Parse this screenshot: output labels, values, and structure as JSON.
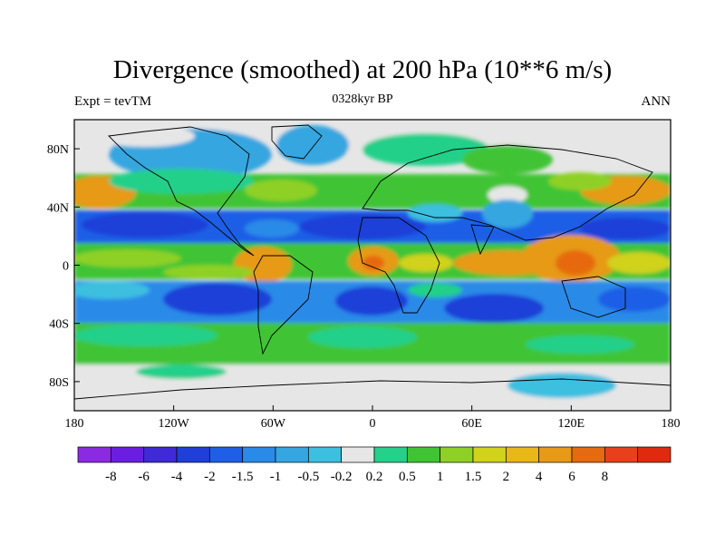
{
  "title": "Divergence (smoothed) at 200 hPa (10**6 m/s)",
  "left_label": "Expt = tevTM",
  "center_label": "0328kyr BP",
  "right_label": "ANN",
  "map": {
    "lat_labels": [
      "80N",
      "40N",
      "0",
      "40S",
      "80S"
    ],
    "lat_values": [
      80,
      40,
      0,
      -40,
      -80
    ],
    "lon_labels": [
      "180",
      "120W",
      "60W",
      "0",
      "60E",
      "120E",
      "180"
    ],
    "lon_values": [
      -180,
      -120,
      -60,
      0,
      60,
      120,
      180
    ]
  },
  "colorbar": {
    "colors": [
      "#8a2be2",
      "#6a1fe0",
      "#3f2ad6",
      "#1f3fd8",
      "#1e5fe6",
      "#2a8ae8",
      "#35a6e0",
      "#3dbfe0",
      "#e6e6e6",
      "#24d08a",
      "#41c434",
      "#8ed026",
      "#d0d21c",
      "#e8b818",
      "#e69a18",
      "#e66a10",
      "#e8401c",
      "#e02a10"
    ],
    "labels": [
      "-8",
      "-6",
      "-4",
      "-2",
      "-1.5",
      "-1",
      "-0.5",
      "-0.2",
      "0.2",
      "0.5",
      "1",
      "1.5",
      "2",
      "4",
      "6",
      "8"
    ]
  }
}
